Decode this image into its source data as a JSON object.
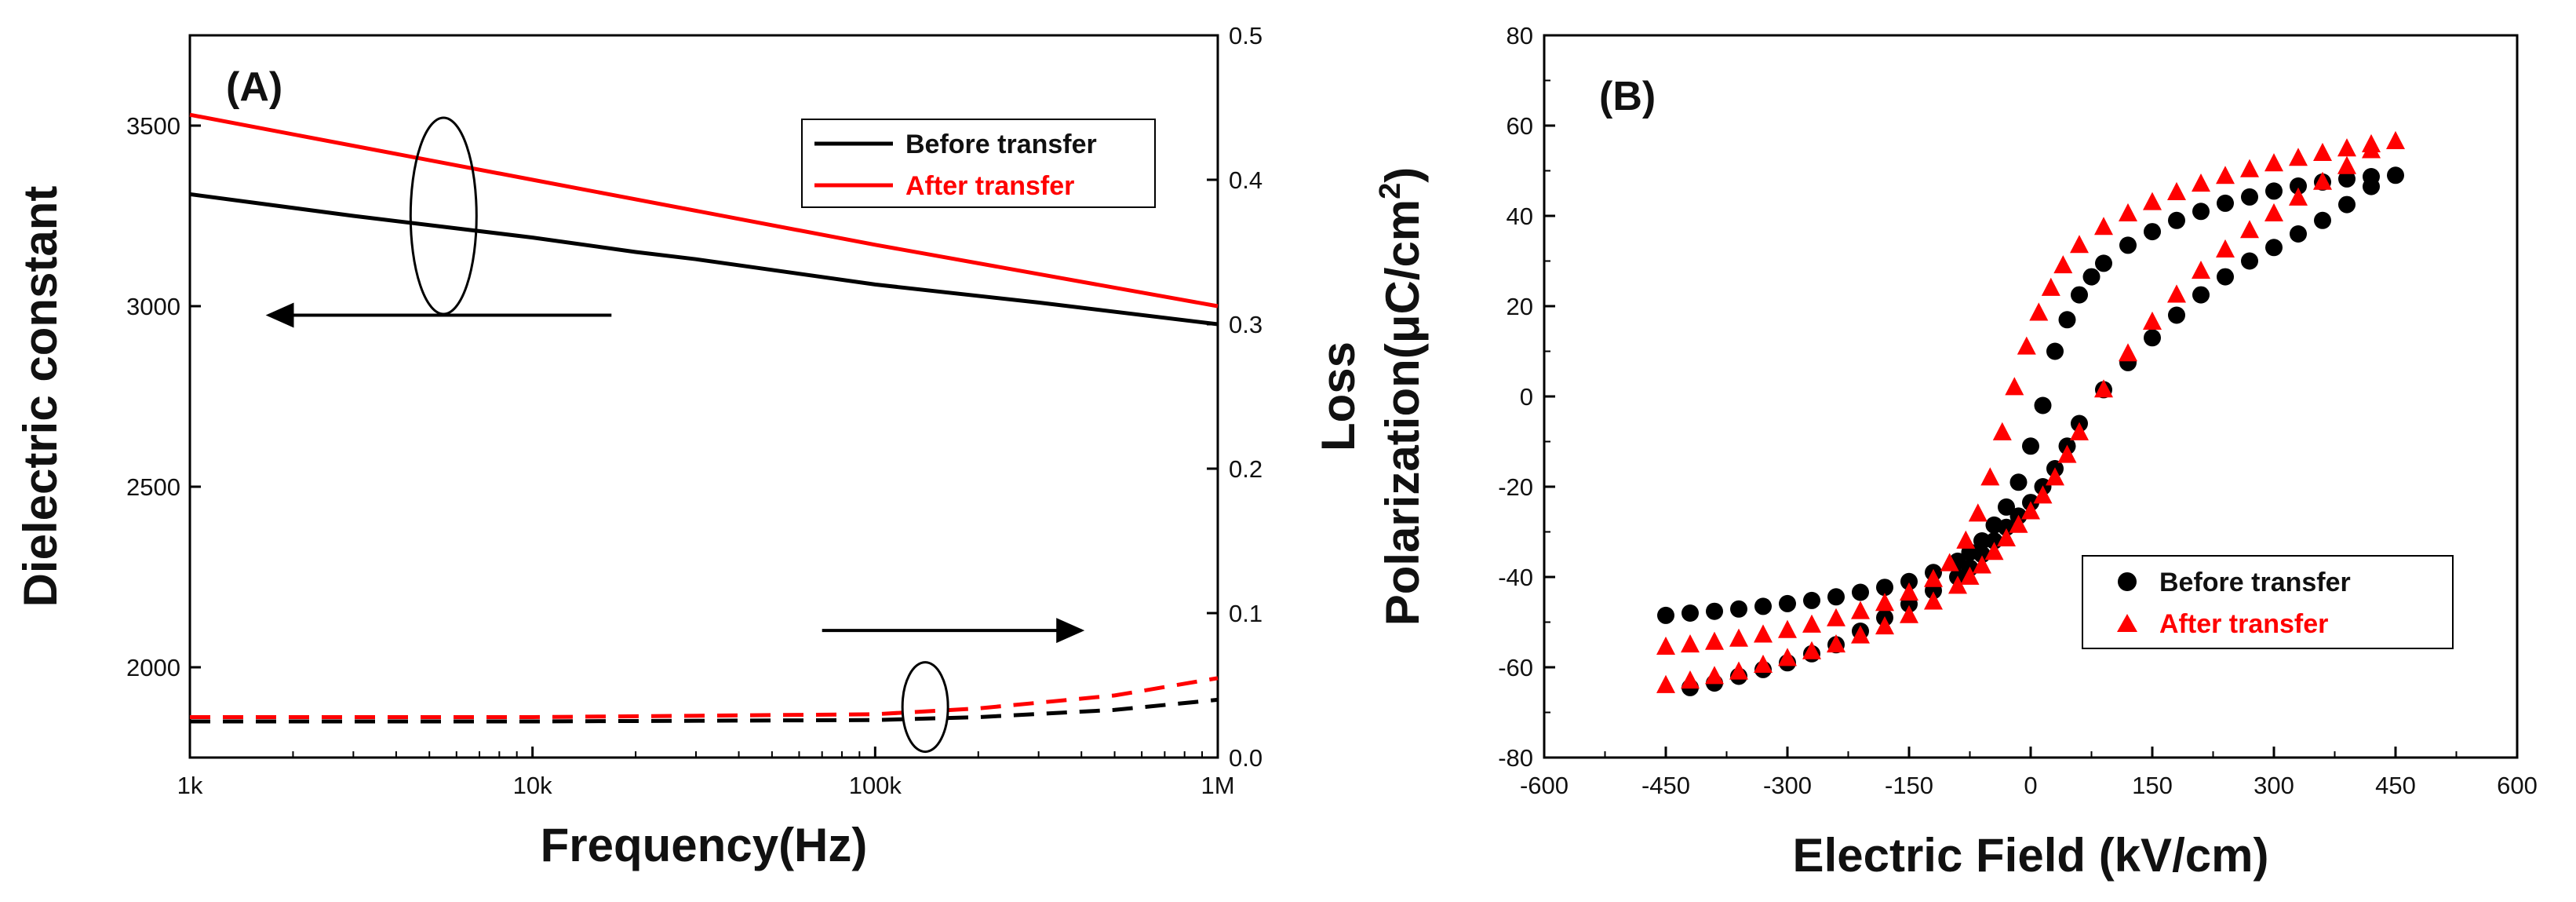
{
  "chart_data": [
    {
      "panel_label": "(A)",
      "type": "line",
      "xscale": "log",
      "xlabel": "Frequency(Hz)",
      "ylabel_left": "Dielectric constant",
      "ylabel_right": "Loss",
      "xlim": [
        1000,
        1000000
      ],
      "ylim_left": [
        1750,
        3750
      ],
      "ylim_right": [
        0,
        0.5
      ],
      "xticks": [
        1000,
        10000,
        100000,
        1000000
      ],
      "xtick_labels": [
        "1k",
        "10k",
        "100k",
        "1M"
      ],
      "yticks_left": [
        2000,
        2500,
        3000,
        3500
      ],
      "yticks_left_labels": [
        "2000",
        "2500",
        "3000",
        "3500"
      ],
      "yticks_right": [
        0.0,
        0.1,
        0.2,
        0.3,
        0.4,
        0.5
      ],
      "yticks_right_labels": [
        "0.0",
        "0.1",
        "0.2",
        "0.3",
        "0.4",
        "0.5"
      ],
      "legend": [
        {
          "label": "Before transfer",
          "color": "#000000"
        },
        {
          "label": "After transfer",
          "color": "#ff0000"
        }
      ],
      "legend_position": "top-right",
      "series": [
        {
          "name": "Before transfer",
          "quantity": "dielectric constant",
          "axis": "left",
          "color": "#000000",
          "style": "solid",
          "x": [
            1000,
            3000,
            10000,
            20000,
            30000,
            100000,
            300000,
            1000000
          ],
          "values": [
            3310,
            3250,
            3190,
            3150,
            3130,
            3060,
            3010,
            2950
          ]
        },
        {
          "name": "After transfer",
          "quantity": "dielectric constant",
          "axis": "left",
          "color": "#ff0000",
          "style": "solid",
          "x": [
            1000,
            10000,
            100000,
            1000000
          ],
          "values": [
            3530,
            3350,
            3170,
            3000
          ]
        },
        {
          "name": "Before transfer",
          "quantity": "loss",
          "axis": "right",
          "color": "#000000",
          "style": "dashed",
          "x": [
            1000,
            10000,
            100000,
            200000,
            500000,
            1000000
          ],
          "values": [
            0.025,
            0.025,
            0.026,
            0.028,
            0.033,
            0.04
          ]
        },
        {
          "name": "After transfer",
          "quantity": "loss",
          "axis": "right",
          "color": "#ff0000",
          "style": "dashed",
          "x": [
            1000,
            10000,
            100000,
            200000,
            500000,
            1000000
          ],
          "values": [
            0.028,
            0.028,
            0.03,
            0.034,
            0.043,
            0.055
          ]
        }
      ],
      "annotations": [
        {
          "type": "ellipse",
          "target": "dielectric constant curves",
          "at": {
            "x": 5500,
            "y": 3250
          }
        },
        {
          "type": "arrow",
          "direction": "left",
          "meaning": "read left axis",
          "from": {
            "x": 17000,
            "y": 2975
          },
          "to": {
            "x": 1700,
            "y": 2975
          }
        },
        {
          "type": "ellipse",
          "target": "loss curves",
          "at": {
            "x": 140000,
            "y": 0.035
          }
        },
        {
          "type": "arrow",
          "direction": "right",
          "meaning": "read right axis",
          "from": {
            "x": 70000,
            "y": 0.088
          },
          "to": {
            "x": 400000,
            "y": 0.088
          }
        }
      ]
    },
    {
      "panel_label": "(B)",
      "type": "scatter",
      "xlabel": "Electric Field (kV/cm)",
      "ylabel": "Polarization(μC/cm²)",
      "ylabel_parts": {
        "main": "Polarization(μC/cm",
        "superscript": "2",
        "close": ")"
      },
      "xlim": [
        -600,
        600
      ],
      "ylim": [
        -80,
        80
      ],
      "xticks": [
        -600,
        -450,
        -300,
        -150,
        0,
        150,
        300,
        450,
        600
      ],
      "xtick_labels": [
        "-600",
        "-450",
        "-300",
        "-150",
        "0",
        "150",
        "300",
        "450",
        "600"
      ],
      "yticks": [
        -80,
        -60,
        -40,
        -20,
        0,
        20,
        40,
        60,
        80
      ],
      "ytick_labels": [
        "-80",
        "-60",
        "-40",
        "-20",
        "0",
        "20",
        "40",
        "60",
        "80"
      ],
      "legend": [
        {
          "label": "Before transfer",
          "color": "#000000",
          "marker": "circle"
        },
        {
          "label": "After transfer",
          "color": "#ff0000",
          "marker": "triangle"
        }
      ],
      "legend_position": "bottom-right",
      "series": [
        {
          "name": "Before transfer",
          "marker": "circle",
          "color": "#000000",
          "x": [
            -450,
            -420,
            -390,
            -360,
            -330,
            -300,
            -270,
            -240,
            -210,
            -180,
            -150,
            -120,
            -90,
            -75,
            -60,
            -45,
            -30,
            -15,
            0,
            15,
            30,
            45,
            60,
            75,
            90,
            120,
            150,
            180,
            210,
            240,
            270,
            300,
            330,
            360,
            390,
            420,
            450,
            420,
            390,
            360,
            330,
            300,
            270,
            240,
            210,
            180,
            150,
            120,
            90,
            60,
            45,
            30,
            15,
            0,
            -15,
            -30,
            -45,
            -60,
            -75,
            -90,
            -120,
            -150,
            -180,
            -210,
            -240,
            -270,
            -300,
            -330,
            -360,
            -390,
            -420
          ],
          "values": [
            -48.5,
            -48,
            -47.6,
            -47.1,
            -46.5,
            -45.9,
            -45.2,
            -44.4,
            -43.4,
            -42.3,
            -41,
            -39,
            -36.5,
            -34.5,
            -32,
            -28.5,
            -24.5,
            -19,
            -11,
            -2,
            10,
            17,
            22.5,
            26.5,
            29.5,
            33.5,
            36.5,
            39,
            41,
            42.8,
            44.2,
            45.5,
            46.6,
            47.5,
            48.2,
            48.7,
            49,
            46.5,
            42.5,
            39,
            36,
            33,
            30,
            26.5,
            22.5,
            18,
            13,
            7.5,
            1.5,
            -6,
            -11,
            -16,
            -20,
            -23.5,
            -26.5,
            -29,
            -32,
            -35,
            -38,
            -40,
            -43,
            -46,
            -49,
            -52,
            -55,
            -57,
            -59,
            -60.5,
            -62,
            -63.5,
            -64.5
          ]
        },
        {
          "name": "After transfer",
          "marker": "triangle",
          "color": "#ff0000",
          "x": [
            -450,
            -420,
            -390,
            -360,
            -330,
            -300,
            -270,
            -240,
            -210,
            -180,
            -150,
            -120,
            -100,
            -80,
            -65,
            -50,
            -35,
            -20,
            -5,
            10,
            25,
            40,
            60,
            90,
            120,
            150,
            180,
            210,
            240,
            270,
            300,
            330,
            360,
            390,
            420,
            450,
            420,
            390,
            360,
            330,
            300,
            270,
            240,
            210,
            180,
            150,
            120,
            90,
            60,
            45,
            30,
            15,
            0,
            -15,
            -30,
            -45,
            -60,
            -75,
            -90,
            -120,
            -150,
            -180,
            -210,
            -240,
            -270,
            -300,
            -330,
            -360,
            -390,
            -420,
            -450
          ],
          "values": [
            -55.5,
            -55,
            -54.4,
            -53.7,
            -52.8,
            -51.8,
            -50.6,
            -49.2,
            -47.6,
            -45.8,
            -43.5,
            -40.5,
            -37,
            -32,
            -26,
            -18,
            -8,
            2,
            11,
            18.5,
            24,
            29,
            33.5,
            37.5,
            40.5,
            43,
            45.2,
            47.1,
            48.8,
            50.3,
            51.6,
            52.8,
            53.9,
            54.9,
            55.8,
            56.5,
            54.5,
            51,
            47.5,
            44,
            40.5,
            36.8,
            32.5,
            27.8,
            22.5,
            16.5,
            9.5,
            1.5,
            -8,
            -13,
            -18,
            -22,
            -25.5,
            -28.5,
            -31.5,
            -34.5,
            -37.5,
            -40,
            -42,
            -45.5,
            -48.5,
            -51,
            -53,
            -55,
            -56.5,
            -58,
            -59.5,
            -61,
            -62,
            -63,
            -64
          ]
        }
      ]
    }
  ]
}
